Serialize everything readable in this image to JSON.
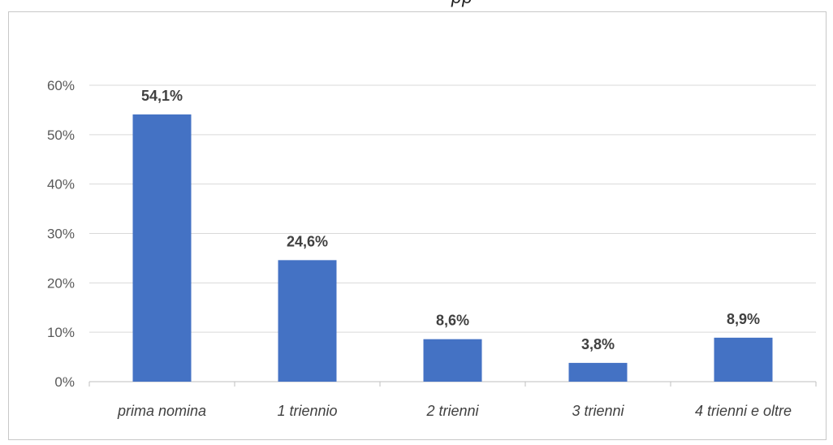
{
  "header": {
    "title_fragment": "pp"
  },
  "chart_data": {
    "type": "bar",
    "categories": [
      "prima nomina",
      "1 triennio",
      "2 trienni",
      "3 trienni",
      "4 trienni e oltre"
    ],
    "values": [
      54.1,
      24.6,
      8.6,
      3.8,
      8.9
    ],
    "data_labels": [
      "54,1%",
      "24,6%",
      "8,6%",
      "3,8%",
      "8,9%"
    ],
    "ylim": [
      0,
      60
    ],
    "yticks": [
      0,
      10,
      20,
      30,
      40,
      50,
      60
    ],
    "ytick_labels": [
      "0%",
      "10%",
      "20%",
      "30%",
      "40%",
      "50%",
      "60%"
    ],
    "grid": true,
    "legend": "none",
    "bar_color": "#4472c4",
    "grid_color": "#d9d9d9"
  }
}
